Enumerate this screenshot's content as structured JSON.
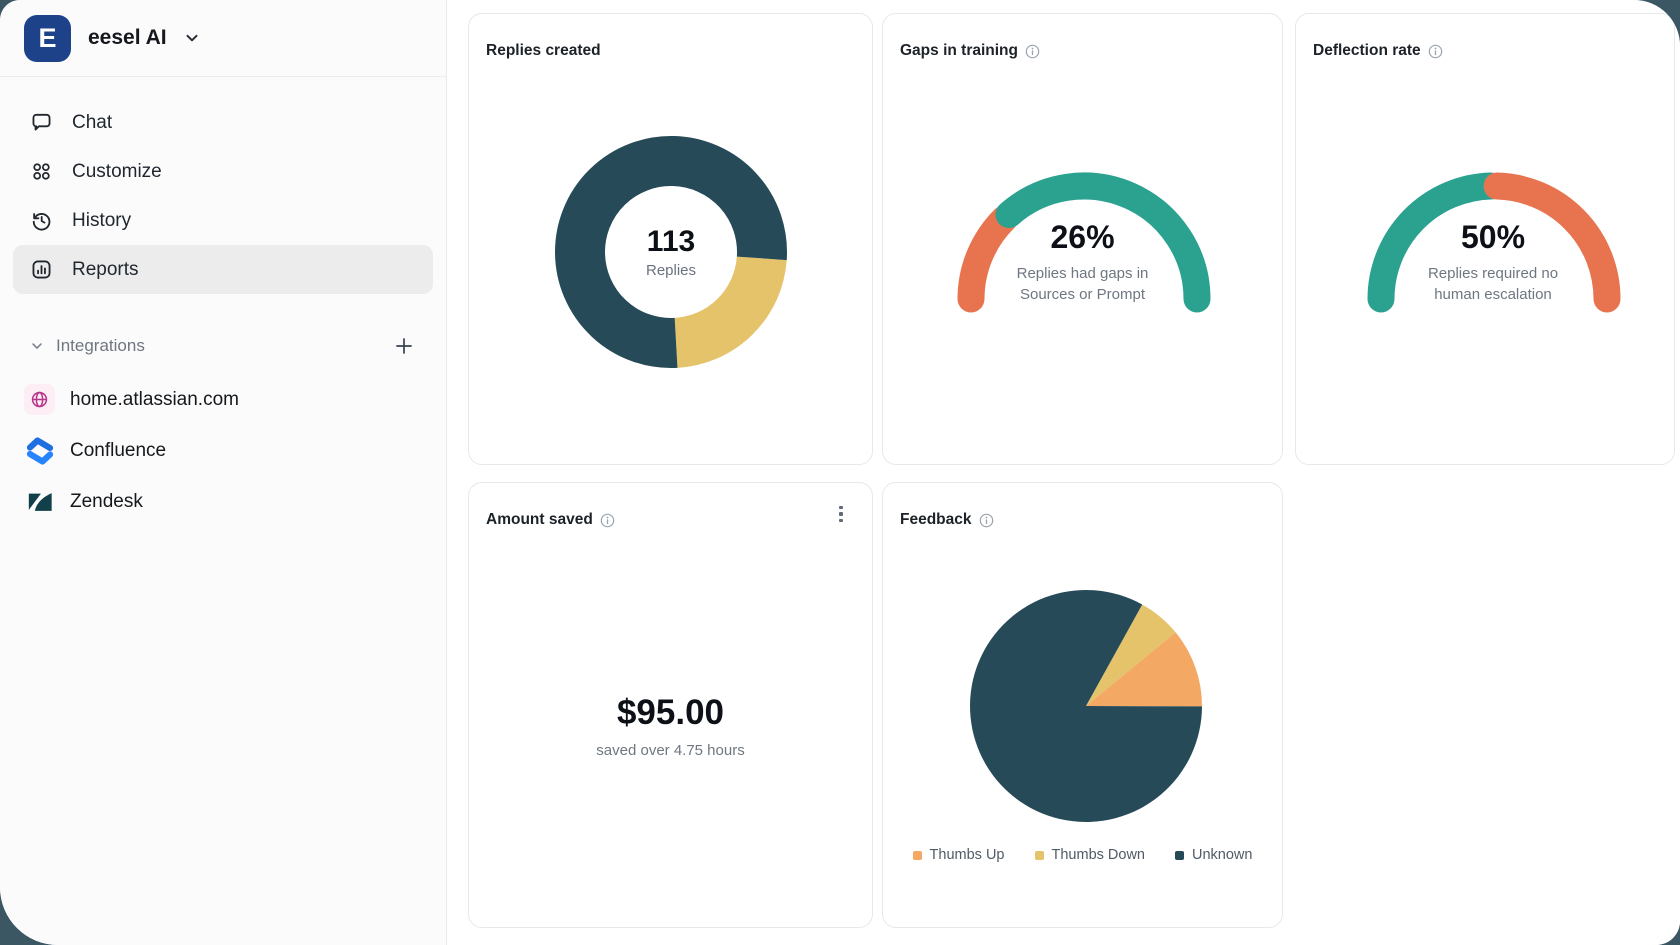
{
  "colors": {
    "backdrop": "#3b5764",
    "brand_navy": "#1d4289",
    "chart_dark": "#274a59",
    "chart_yellow": "#e4c36b",
    "chart_teal": "#2ba28f",
    "chart_coral": "#e8744f",
    "chart_orange": "#f3a863"
  },
  "sidebar": {
    "workspace": {
      "initial": "E",
      "name": "eesel AI"
    },
    "nav": [
      {
        "label": "Chat"
      },
      {
        "label": "Customize"
      },
      {
        "label": "History"
      },
      {
        "label": "Reports"
      }
    ],
    "integrations": {
      "label": "Integrations",
      "items": [
        {
          "label": "home.atlassian.com"
        },
        {
          "label": "Confluence"
        },
        {
          "label": "Zendesk"
        }
      ]
    }
  },
  "cards": {
    "replies_created": {
      "title": "Replies created",
      "value": "113",
      "unit": "Replies"
    },
    "gaps_in_training": {
      "title": "Gaps in training",
      "value": "26%",
      "description_line1": "Replies had gaps in",
      "description_line2": "Sources or Prompt"
    },
    "deflection_rate": {
      "title": "Deflection rate",
      "value": "50%",
      "description_line1": "Replies required no",
      "description_line2": "human escalation"
    },
    "amount_saved": {
      "title": "Amount saved",
      "value": "$95.00",
      "caption": "saved over 4.75 hours"
    },
    "feedback": {
      "title": "Feedback",
      "legend": [
        {
          "label": "Thumbs Up",
          "color": "#f3a863"
        },
        {
          "label": "Thumbs Down",
          "color": "#e4c36b"
        },
        {
          "label": "Unknown",
          "color": "#274a59"
        }
      ]
    }
  },
  "chart_data": [
    {
      "id": "replies-donut",
      "type": "donut",
      "title": "Replies created",
      "center_label": "113",
      "center_sublabel": "Replies",
      "start_angle": 94,
      "segments": [
        {
          "value": 23,
          "color": "#e4c36b"
        },
        {
          "value": 77,
          "color": "#274a59"
        }
      ]
    },
    {
      "id": "gaps-gauge",
      "type": "gauge",
      "title": "Gaps in training",
      "percent": 26,
      "label": "Replies had gaps in Sources or Prompt",
      "value_side": "left",
      "value_color": "#e8744f",
      "rest_color": "#2ba28f"
    },
    {
      "id": "deflection-gauge",
      "type": "gauge",
      "title": "Deflection rate",
      "percent": 50,
      "label": "Replies required no human escalation",
      "value_side": "left",
      "value_color": "#2ba28f",
      "rest_color": "#e8744f"
    },
    {
      "id": "amount-stat",
      "type": "stat",
      "title": "Amount saved",
      "value": "$95.00",
      "caption": "saved over 4.75 hours"
    },
    {
      "id": "feedback-pie",
      "type": "pie",
      "title": "Feedback",
      "start_angle": 29,
      "slices": [
        {
          "label": "Thumbs Down",
          "value": 6,
          "color": "#e4c36b"
        },
        {
          "label": "Thumbs Up",
          "value": 11,
          "color": "#f3a863"
        },
        {
          "label": "Unknown",
          "value": 83,
          "color": "#274a59"
        }
      ],
      "legend_position": "bottom"
    }
  ]
}
